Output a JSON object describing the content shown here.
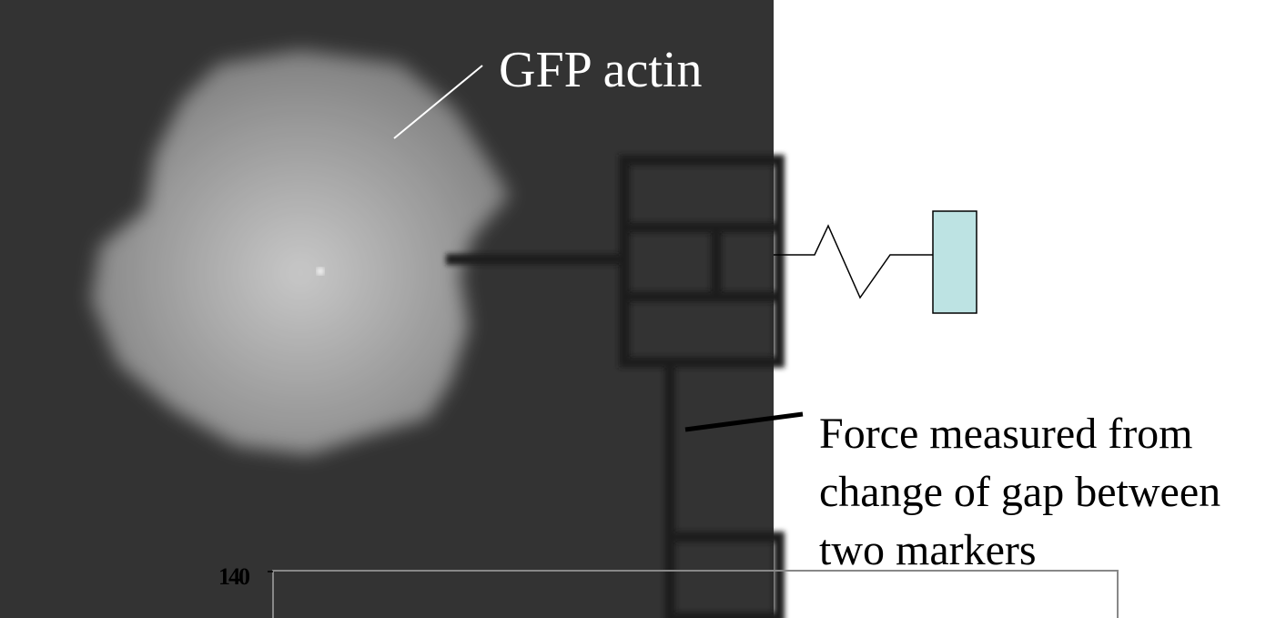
{
  "labels": {
    "actin": "GFP actin",
    "force": [
      "Force measured from",
      "change of gap between",
      "two markers"
    ]
  },
  "plot": {
    "yticks": [
      140
    ]
  }
}
